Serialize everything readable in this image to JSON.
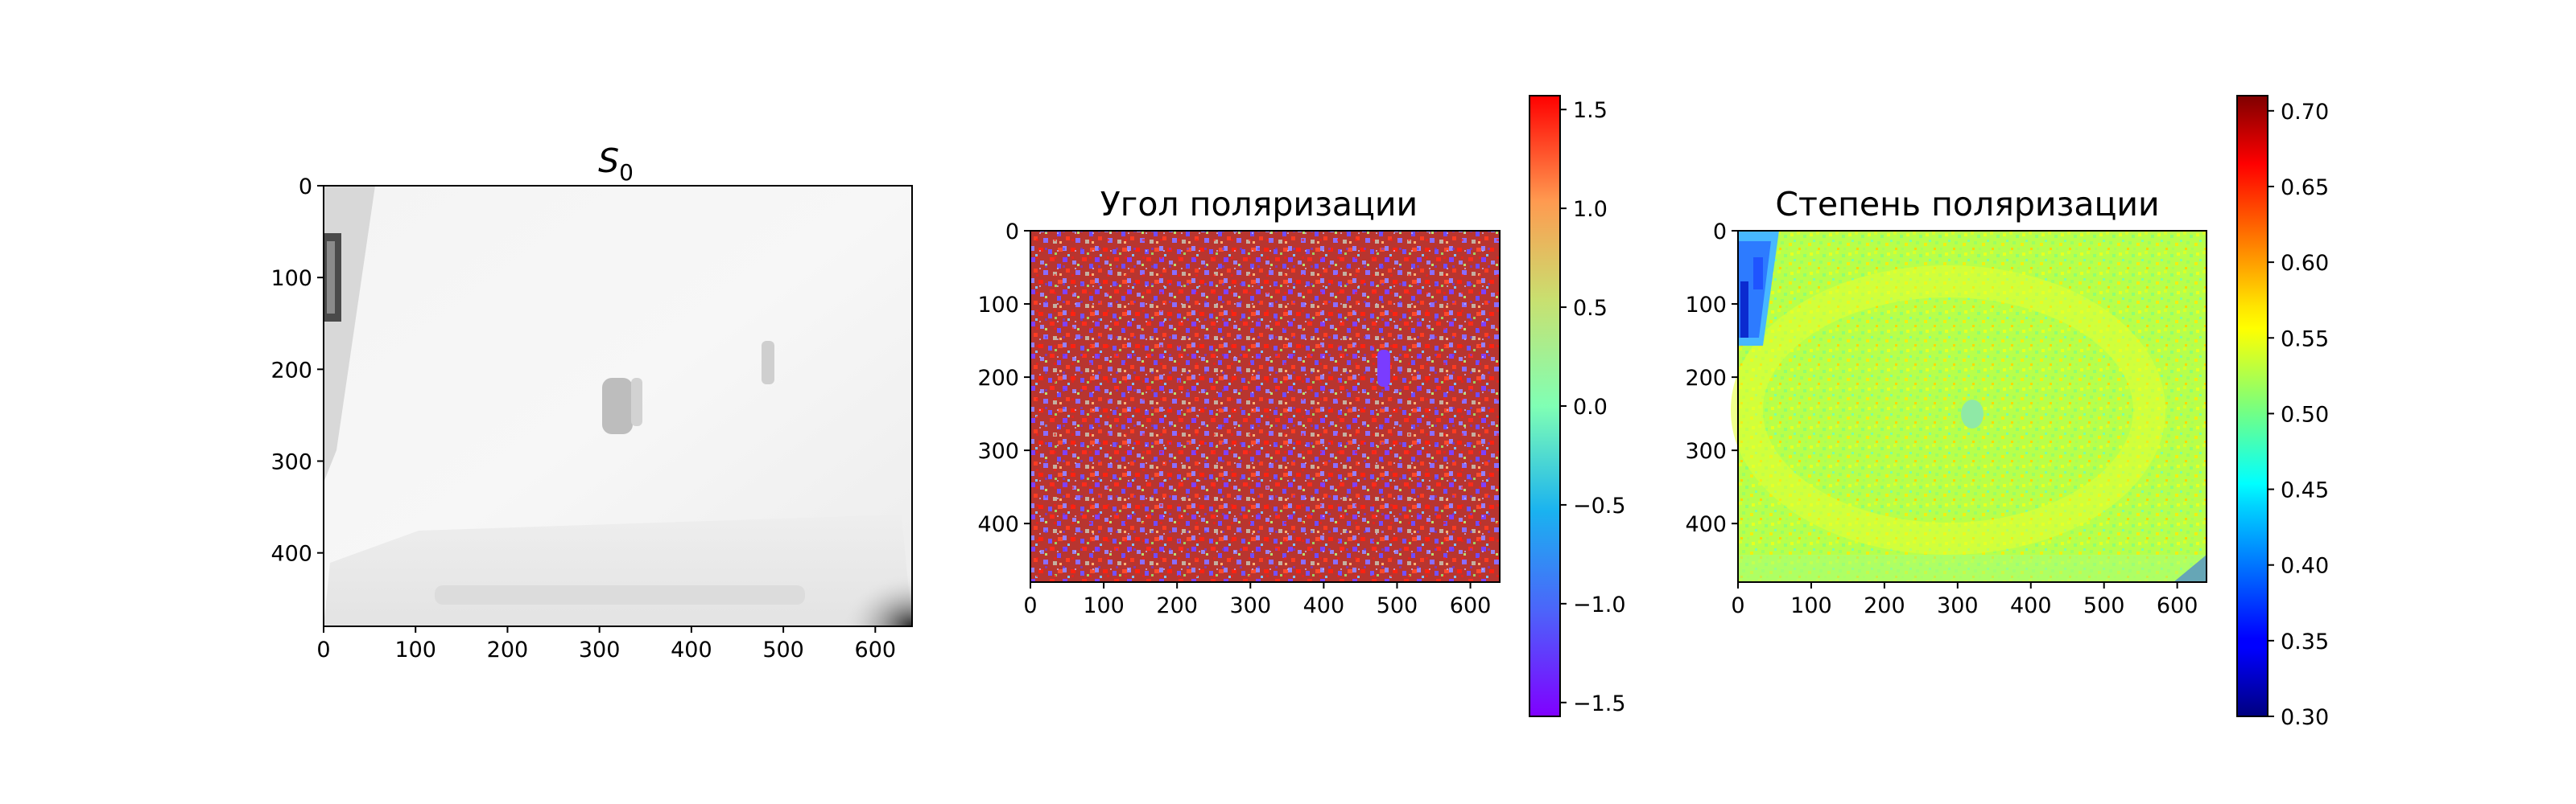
{
  "chart_data": [
    {
      "type": "heatmap",
      "title": "S",
      "title_sub": "0",
      "colormap": "gray",
      "x_ticks": [
        "0",
        "100",
        "200",
        "300",
        "400",
        "500",
        "600"
      ],
      "y_ticks": [
        "0",
        "100",
        "200",
        "300",
        "400"
      ],
      "xlim": [
        0,
        640
      ],
      "ylim": [
        480,
        0
      ],
      "colorbar": null
    },
    {
      "type": "heatmap",
      "title": "Угол поляризации",
      "colormap": "rainbow",
      "x_ticks": [
        "0",
        "100",
        "200",
        "300",
        "400",
        "500",
        "600"
      ],
      "y_ticks": [
        "0",
        "100",
        "200",
        "300",
        "400"
      ],
      "xlim": [
        0,
        640
      ],
      "ylim": [
        480,
        0
      ],
      "colorbar": {
        "min": -1.57,
        "max": 1.57,
        "ticks": [
          "1.5",
          "1.0",
          "0.5",
          "0.0",
          "−0.5",
          "−1.0",
          "−1.5"
        ]
      }
    },
    {
      "type": "heatmap",
      "title": "Степень поляризации",
      "colormap": "jet",
      "x_ticks": [
        "0",
        "100",
        "200",
        "300",
        "400",
        "500",
        "600"
      ],
      "y_ticks": [
        "0",
        "100",
        "200",
        "300",
        "400"
      ],
      "xlim": [
        0,
        640
      ],
      "ylim": [
        480,
        0
      ],
      "colorbar": {
        "min": 0.3,
        "max": 0.71,
        "ticks": [
          "0.70",
          "0.65",
          "0.60",
          "0.55",
          "0.50",
          "0.45",
          "0.40",
          "0.35",
          "0.30"
        ]
      }
    }
  ]
}
